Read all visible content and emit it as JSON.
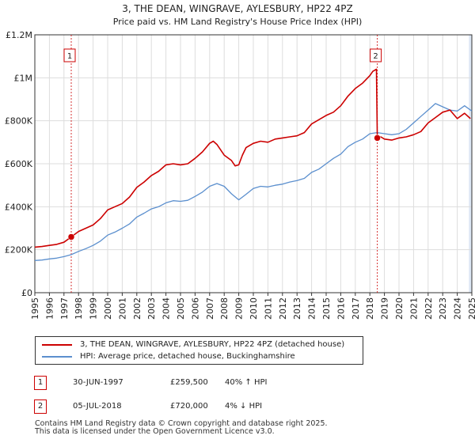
{
  "colors": {
    "property": "#cc0000",
    "hpi": "#5b8fce",
    "grid": "#dddddd",
    "shade": "#dde7f4"
  },
  "chart_data": {
    "type": "line",
    "title": "3, THE DEAN, WINGRAVE, AYLESBURY, HP22 4PZ",
    "subtitle": "Price paid vs. HM Land Registry's House Price Index (HPI)",
    "xlim": [
      1995,
      2025
    ],
    "ylim": [
      0,
      1200000
    ],
    "y_ticks": [
      {
        "value": 0,
        "label": "£0"
      },
      {
        "value": 200000,
        "label": "£200K"
      },
      {
        "value": 400000,
        "label": "£400K"
      },
      {
        "value": 600000,
        "label": "£600K"
      },
      {
        "value": 800000,
        "label": "£800K"
      },
      {
        "value": 1000000,
        "label": "£1M"
      },
      {
        "value": 1200000,
        "label": "£1.2M"
      }
    ],
    "x_ticks": [
      "1995",
      "1996",
      "1997",
      "1998",
      "1999",
      "2000",
      "2001",
      "2002",
      "2003",
      "2004",
      "2005",
      "2006",
      "2007",
      "2008",
      "2009",
      "2010",
      "2011",
      "2012",
      "2013",
      "2014",
      "2015",
      "2016",
      "2017",
      "2018",
      "2019",
      "2020",
      "2021",
      "2022",
      "2023",
      "2024",
      "2025"
    ],
    "series": [
      {
        "name": "3, THE DEAN, WINGRAVE, AYLESBURY, HP22 4PZ (detached house)",
        "x": [
          1995.0,
          1995.5,
          1996.0,
          1996.5,
          1997.0,
          1997.5,
          1998.0,
          1998.5,
          1999.0,
          1999.5,
          2000.0,
          2000.5,
          2001.0,
          2001.5,
          2002.0,
          2002.5,
          2003.0,
          2003.5,
          2004.0,
          2004.5,
          2005.0,
          2005.5,
          2006.0,
          2006.5,
          2007.0,
          2007.25,
          2007.5,
          2008.0,
          2008.5,
          2008.75,
          2009.0,
          2009.25,
          2009.5,
          2010.0,
          2010.5,
          2011.0,
          2011.5,
          2012.0,
          2012.5,
          2013.0,
          2013.5,
          2014.0,
          2014.5,
          2015.0,
          2015.5,
          2016.0,
          2016.5,
          2017.0,
          2017.5,
          2018.0,
          2018.2,
          2018.45,
          2018.51,
          2018.75,
          2019.0,
          2019.5,
          2020.0,
          2020.5,
          2021.0,
          2021.5,
          2022.0,
          2022.5,
          2023.0,
          2023.5,
          2024.0,
          2024.5,
          2024.9
        ],
        "values": [
          212000,
          215000,
          220000,
          225000,
          235000,
          259500,
          285000,
          300000,
          315000,
          345000,
          385000,
          400000,
          415000,
          445000,
          490000,
          515000,
          545000,
          565000,
          595000,
          600000,
          595000,
          600000,
          625000,
          655000,
          695000,
          705000,
          690000,
          640000,
          615000,
          590000,
          595000,
          640000,
          675000,
          695000,
          705000,
          700000,
          715000,
          720000,
          725000,
          730000,
          745000,
          785000,
          805000,
          825000,
          840000,
          870000,
          915000,
          950000,
          975000,
          1010000,
          1030000,
          1040000,
          720000,
          725000,
          715000,
          710000,
          720000,
          725000,
          735000,
          750000,
          790000,
          815000,
          840000,
          850000,
          810000,
          835000,
          810000
        ]
      },
      {
        "name": "HPI: Average price, detached house, Buckinghamshire",
        "x": [
          1995.0,
          1995.5,
          1996.0,
          1996.5,
          1997.0,
          1997.5,
          1998.0,
          1998.5,
          1999.0,
          1999.5,
          2000.0,
          2000.5,
          2001.0,
          2001.5,
          2002.0,
          2002.5,
          2003.0,
          2003.5,
          2004.0,
          2004.5,
          2005.0,
          2005.5,
          2006.0,
          2006.5,
          2007.0,
          2007.5,
          2008.0,
          2008.5,
          2009.0,
          2009.5,
          2010.0,
          2010.5,
          2011.0,
          2011.5,
          2012.0,
          2012.5,
          2013.0,
          2013.5,
          2014.0,
          2014.5,
          2015.0,
          2015.5,
          2016.0,
          2016.5,
          2017.0,
          2017.5,
          2018.0,
          2018.5,
          2019.0,
          2019.5,
          2020.0,
          2020.5,
          2021.0,
          2021.5,
          2022.0,
          2022.5,
          2023.0,
          2023.5,
          2024.0,
          2024.5,
          2025.0
        ],
        "values": [
          150000,
          152000,
          157000,
          161000,
          168000,
          177000,
          192000,
          205000,
          220000,
          240000,
          268000,
          282000,
          300000,
          320000,
          352000,
          370000,
          390000,
          400000,
          418000,
          428000,
          425000,
          430000,
          448000,
          468000,
          495000,
          508000,
          495000,
          460000,
          432000,
          458000,
          485000,
          495000,
          492000,
          500000,
          505000,
          515000,
          522000,
          532000,
          560000,
          575000,
          600000,
          625000,
          645000,
          680000,
          700000,
          715000,
          740000,
          745000,
          740000,
          735000,
          740000,
          760000,
          790000,
          820000,
          850000,
          880000,
          865000,
          850000,
          845000,
          870000,
          845000
        ]
      }
    ],
    "markers": [
      {
        "label": "1",
        "x": 1997.5,
        "y": 259500
      },
      {
        "label": "2",
        "x": 2018.51,
        "y": 720000
      }
    ],
    "shaded_start_year": 2024.8
  },
  "legend": {
    "property": "3, THE DEAN, WINGRAVE, AYLESBURY, HP22 4PZ (detached house)",
    "hpi": "HPI: Average price, detached house, Buckinghamshire"
  },
  "sales": [
    {
      "num": "1",
      "date": "30-JUN-1997",
      "price": "£259,500",
      "hpi": "40% ↑ HPI"
    },
    {
      "num": "2",
      "date": "05-JUL-2018",
      "price": "£720,000",
      "hpi": "4% ↓ HPI"
    }
  ],
  "footer": {
    "line1": "Contains HM Land Registry data © Crown copyright and database right 2025.",
    "line2": "This data is licensed under the Open Government Licence v3.0."
  }
}
